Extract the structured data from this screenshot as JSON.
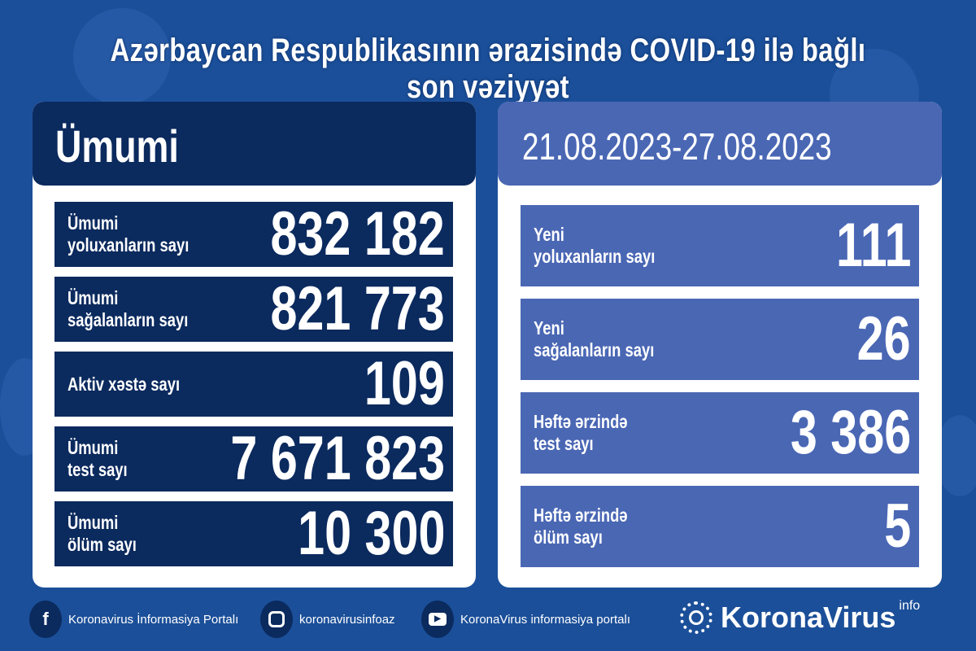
{
  "title": "Azərbaycan Respublikasının ərazisində COVID-19 ilə bağlı son vəziyyət",
  "left": {
    "header": "Ümumi",
    "rows": [
      {
        "label": "Ümumi\nyoluxanların sayı",
        "value": "832 182"
      },
      {
        "label": "Ümumi\nsağalanların sayı",
        "value": "821 773"
      },
      {
        "label": "Aktiv xəstə sayı",
        "value": "109"
      },
      {
        "label": "Ümumi\ntest sayı",
        "value": "7 671 823"
      },
      {
        "label": "Ümumi\nölüm sayı",
        "value": "10 300"
      }
    ]
  },
  "right": {
    "header": "21.08.2023-27.08.2023",
    "rows": [
      {
        "label": "Yeni\nyoluxanların sayı",
        "value": "111"
      },
      {
        "label": "Yeni\nsağalanların sayı",
        "value": "26"
      },
      {
        "label": "Həftə ərzində\ntest sayı",
        "value": "3 386"
      },
      {
        "label": "Həftə ərzində\nölüm sayı",
        "value": "5"
      }
    ]
  },
  "footer": {
    "facebook": "Koronavirus İnformasiya Portalı",
    "instagram": "koronavirusinfoaz",
    "youtube": "KoronaVirus informasiya portalı",
    "brand": "KoronaVirus",
    "brand_sup": "info"
  },
  "colors": {
    "background": "#1b4f99",
    "dark_navy": "#0b2a5e",
    "light_blue": "#4a67b4"
  }
}
